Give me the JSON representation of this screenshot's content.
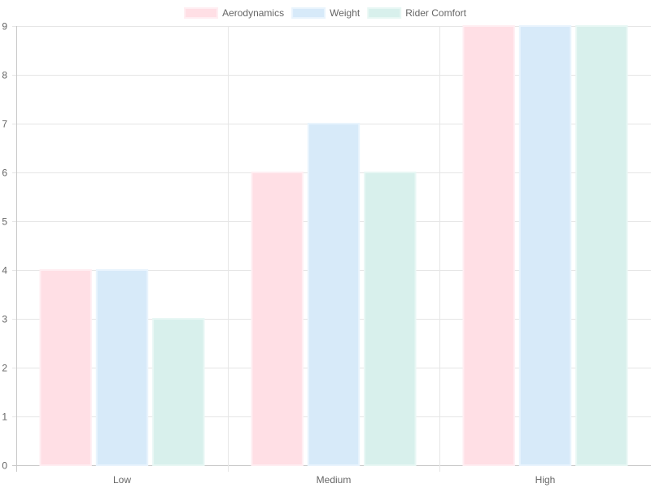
{
  "chart_data": {
    "type": "bar",
    "categories": [
      "Low",
      "Medium",
      "High"
    ],
    "series": [
      {
        "name": "Aerodynamics",
        "values": [
          4,
          6,
          9
        ],
        "color": "#ffdfe5",
        "border_color": "#ffeef2"
      },
      {
        "name": "Weight",
        "values": [
          4,
          7,
          9
        ],
        "color": "#d7eaf9",
        "border_color": "#e9f4fd"
      },
      {
        "name": "Rider Comfort",
        "values": [
          3,
          6,
          9
        ],
        "color": "#d8f0ec",
        "border_color": "#e8f7f4"
      }
    ],
    "ylim": [
      0,
      9
    ],
    "yticks": [
      0,
      1,
      2,
      3,
      4,
      5,
      6,
      7,
      8,
      9
    ],
    "grid": true,
    "legend_position": "top-center"
  }
}
